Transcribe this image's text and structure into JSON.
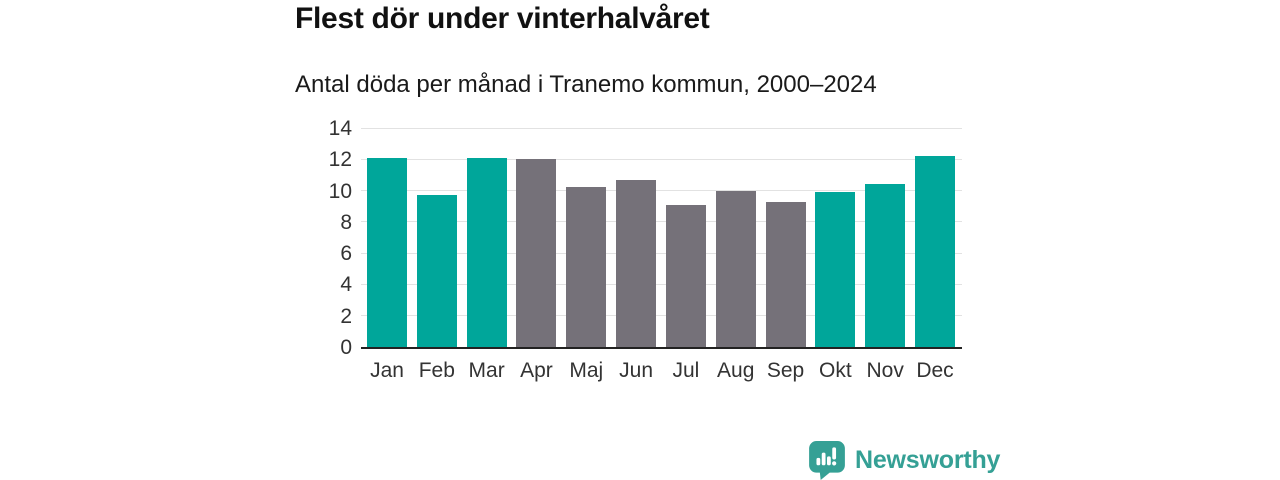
{
  "header": {
    "title": "Flest dör under vinterhalvåret",
    "subtitle": "Antal döda per månad i Tranemo kommun, 2000–2024"
  },
  "chart_data": {
    "type": "bar",
    "title": "Flest dör under vinterhalvåret",
    "subtitle": "Antal döda per månad i Tranemo kommun, 2000–2024",
    "categories": [
      "Jan",
      "Feb",
      "Mar",
      "Apr",
      "Maj",
      "Jun",
      "Jul",
      "Aug",
      "Sep",
      "Okt",
      "Nov",
      "Dec"
    ],
    "values": [
      12.1,
      9.7,
      12.1,
      12.0,
      10.2,
      10.7,
      9.1,
      10.0,
      9.3,
      9.9,
      10.4,
      12.2
    ],
    "bar_colors": [
      "teal",
      "teal",
      "teal",
      "gray",
      "gray",
      "gray",
      "gray",
      "gray",
      "gray",
      "teal",
      "teal",
      "teal"
    ],
    "palette": {
      "teal": "#00a69a",
      "gray": "#757179"
    },
    "xlabel": "",
    "ylabel": "",
    "ylim": [
      0,
      14
    ],
    "yticks": [
      0,
      2,
      4,
      6,
      8,
      10,
      12,
      14
    ],
    "grid": true,
    "legend": false
  },
  "footer": {
    "brand": "Newsworthy"
  },
  "colors": {
    "background": "#ffffff",
    "title_text": "#111111",
    "subtitle_text": "#1a1a1a",
    "tick_text": "#333333",
    "grid": "#e2e2e2",
    "axis_line": "#222222",
    "brand": "#35a095"
  }
}
